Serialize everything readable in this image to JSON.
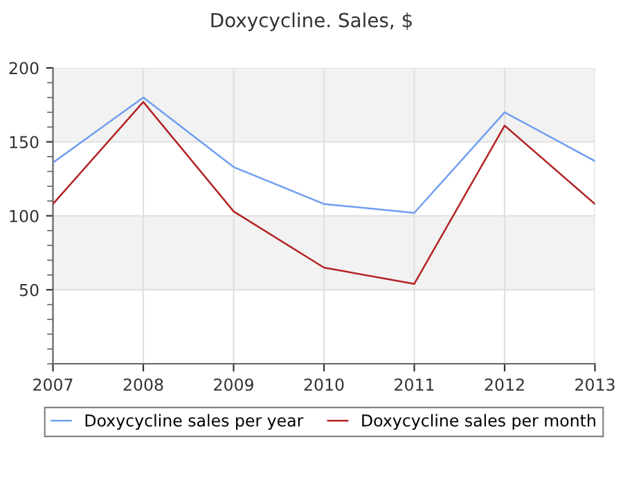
{
  "chart_data": {
    "type": "line",
    "title": "Doxycycline. Sales, $",
    "x": [
      2007,
      2008,
      2009,
      2010,
      2011,
      2012,
      2013
    ],
    "series": [
      {
        "name": "Doxycycline sales per year",
        "color": "#6f9ef0",
        "values": [
          136,
          180,
          133,
          108,
          102,
          170,
          137
        ]
      },
      {
        "name": "Doxycycline sales per month",
        "color": "#b22222",
        "values": [
          108,
          177,
          103,
          65,
          54,
          161,
          108
        ]
      }
    ],
    "xlim": [
      2007,
      2013
    ],
    "xticks": [
      2007,
      2008,
      2009,
      2010,
      2011,
      2012,
      2013
    ],
    "ylim": [
      0,
      200
    ],
    "yticks": [
      50,
      100,
      150,
      200
    ],
    "bands": [
      {
        "axis": "y",
        "from": 50,
        "to": 100,
        "color": "#f2f2f2"
      },
      {
        "axis": "y",
        "from": 150,
        "to": 200,
        "color": "#f2f2f2"
      }
    ],
    "grid": true,
    "legend": "bottom",
    "marker": "none",
    "line_style": "solid"
  }
}
